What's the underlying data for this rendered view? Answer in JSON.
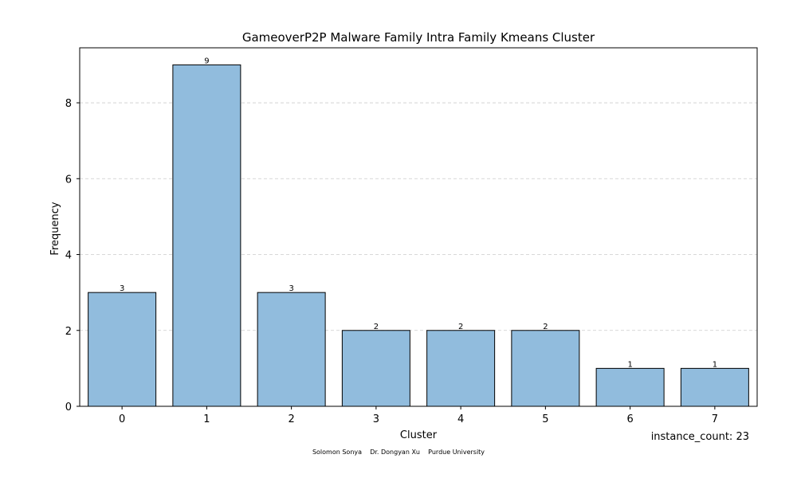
{
  "chart_data": {
    "type": "bar",
    "title": "GameoverP2P Malware Family Intra Family Kmeans Cluster",
    "xlabel": "Cluster",
    "ylabel": "Frequency",
    "categories": [
      "0",
      "1",
      "2",
      "3",
      "4",
      "5",
      "6",
      "7"
    ],
    "values": [
      3,
      9,
      3,
      2,
      2,
      2,
      1,
      1
    ],
    "data_labels": [
      "3",
      "9",
      "3",
      "2",
      "2",
      "2",
      "1",
      "1"
    ],
    "ylim": [
      0,
      9.45
    ],
    "yticks": [
      0,
      2,
      4,
      6,
      8
    ],
    "ytick_labels": [
      "0",
      "2",
      "4",
      "6",
      "8"
    ],
    "grid": "y-dashed",
    "colors": {
      "bar_fill": "#91bcdd",
      "bar_edge": "#000000",
      "grid": "#cccccc",
      "axis": "#000000"
    }
  },
  "annotations": {
    "instance_count": "instance_count: 23",
    "footer": "Solomon Sonya    Dr. Dongyan Xu    Purdue University"
  }
}
